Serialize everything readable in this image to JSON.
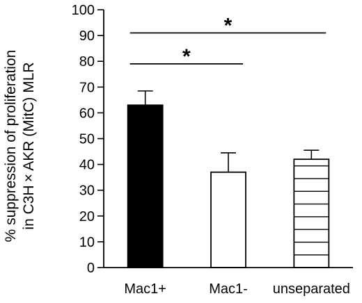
{
  "chart_data": {
    "type": "bar",
    "ylabel_line1": "% suppression of proliferation",
    "ylabel_line2": "in C3H × AKR (MitC) MLR",
    "ylim": [
      0,
      100
    ],
    "yticks": [
      0,
      10,
      20,
      30,
      40,
      50,
      60,
      70,
      80,
      90,
      100
    ],
    "ytick_labels": [
      "0",
      "10",
      "20",
      "30",
      "40",
      "50",
      "60",
      "70",
      "80",
      "90",
      "100"
    ],
    "categories": [
      "Mac1+",
      "Mac1-",
      "unseparated"
    ],
    "values": [
      63,
      37,
      42
    ],
    "errors": [
      5.5,
      7.5,
      3.5
    ],
    "fills": [
      "solid-black",
      "white",
      "horizontal-stripes"
    ],
    "grid": false,
    "legend": "none",
    "significance": [
      {
        "from": 0,
        "to": 1,
        "y": 79,
        "label": "*"
      },
      {
        "from": 0,
        "to": 2,
        "y": 91,
        "label": "*"
      }
    ]
  }
}
